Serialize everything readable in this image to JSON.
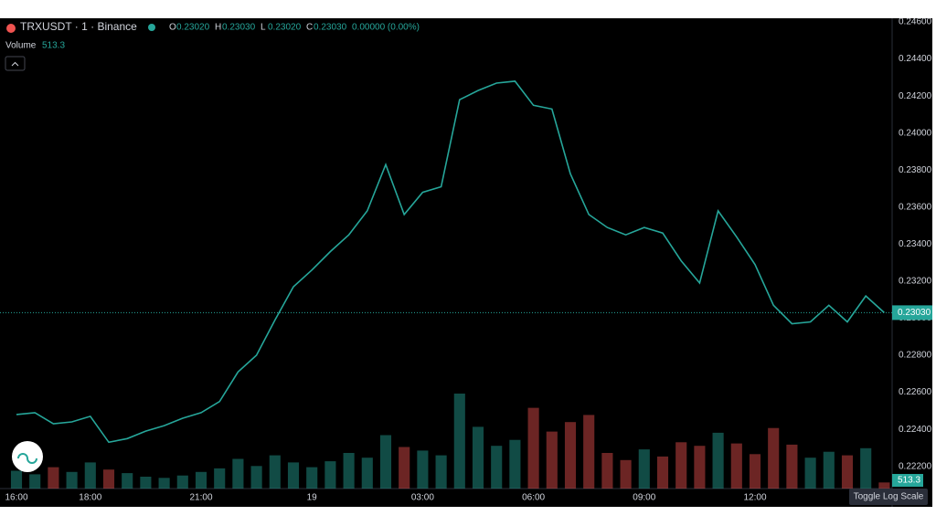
{
  "chart_data": {
    "type": "line",
    "symbol": "TRXUSDT · 1 · Binance",
    "ohlc": [
      {
        "key": "O",
        "value": 0.2302,
        "label": "0.23020"
      },
      {
        "key": "H",
        "value": 0.2303,
        "label": "0.23030"
      },
      {
        "key": "L",
        "value": 0.2302,
        "label": "0.23020"
      },
      {
        "key": "C",
        "value": 0.2303,
        "label": "0.23030"
      }
    ],
    "change": "0.00000 (0.00%)",
    "volume_title": "Volume",
    "categories": [
      "16:00",
      null,
      null,
      null,
      "18:00",
      null,
      null,
      null,
      null,
      null,
      "21:00",
      null,
      null,
      null,
      null,
      null,
      "19",
      null,
      null,
      null,
      null,
      null,
      "03:00",
      null,
      null,
      null,
      null,
      null,
      "06:00",
      null,
      null,
      null,
      null,
      null,
      "09:00",
      null,
      null,
      null,
      null,
      null,
      "12:00",
      null,
      null,
      null,
      null,
      null,
      null,
      null
    ],
    "values": [
      0.2248,
      0.2249,
      0.2243,
      0.2244,
      0.2247,
      0.2233,
      0.2235,
      0.2239,
      0.2242,
      0.2246,
      0.2249,
      0.2255,
      0.2271,
      0.228,
      0.2299,
      0.2317,
      0.2326,
      0.2336,
      0.2345,
      0.2358,
      0.2383,
      0.2356,
      0.2368,
      0.2371,
      0.2418,
      0.2423,
      0.2427,
      0.2428,
      0.2415,
      0.2413,
      0.2378,
      0.2356,
      0.2349,
      0.2345,
      0.2349,
      0.2346,
      0.2331,
      0.2319,
      0.2358,
      0.2344,
      0.2329,
      0.2307,
      0.2297,
      0.2298,
      0.2307,
      0.2298,
      0.2312,
      0.2303
    ],
    "color": "#26a69a",
    "up_color": "#26a69a",
    "down_color": "#ef5350",
    "volume": {
      "values": [
        1500,
        1200,
        1800,
        1400,
        2200,
        1600,
        1300,
        1000,
        900,
        1100,
        1400,
        1700,
        2500,
        1900,
        2800,
        2200,
        1800,
        2300,
        3000,
        2600,
        4500,
        3500,
        3200,
        2800,
        8000,
        5200,
        3600,
        4100,
        6800,
        4800,
        5600,
        6200,
        3000,
        2400,
        3300,
        2700,
        3900,
        3600,
        4700,
        3800,
        2900,
        5100,
        3700,
        2600,
        3100,
        2800,
        3400,
        513.3
      ],
      "vlim": [
        0,
        10000
      ]
    },
    "last_price": {
      "value": 0.2303,
      "label": "0.23030"
    },
    "ylim": [
      0.2208,
      0.2462
    ],
    "yticks": [
      {
        "value": 0.222,
        "label": "0.22200"
      },
      {
        "value": 0.224,
        "label": "0.22400"
      },
      {
        "value": 0.226,
        "label": "0.22600"
      },
      {
        "value": 0.228,
        "label": "0.22800"
      },
      {
        "value": 0.23,
        "label": "0.23000"
      },
      {
        "value": 0.232,
        "label": "0.23200"
      },
      {
        "value": 0.234,
        "label": "0.23400"
      },
      {
        "value": 0.236,
        "label": "0.23600"
      },
      {
        "value": 0.238,
        "label": "0.23800"
      },
      {
        "value": 0.24,
        "label": "0.24000"
      },
      {
        "value": 0.242,
        "label": "0.24200"
      },
      {
        "value": 0.244,
        "label": "0.24400"
      },
      {
        "value": 0.246,
        "label": "0.24600"
      }
    ],
    "log_scale": false,
    "grid": false,
    "toggle_button": "Toggle Log Scale"
  }
}
